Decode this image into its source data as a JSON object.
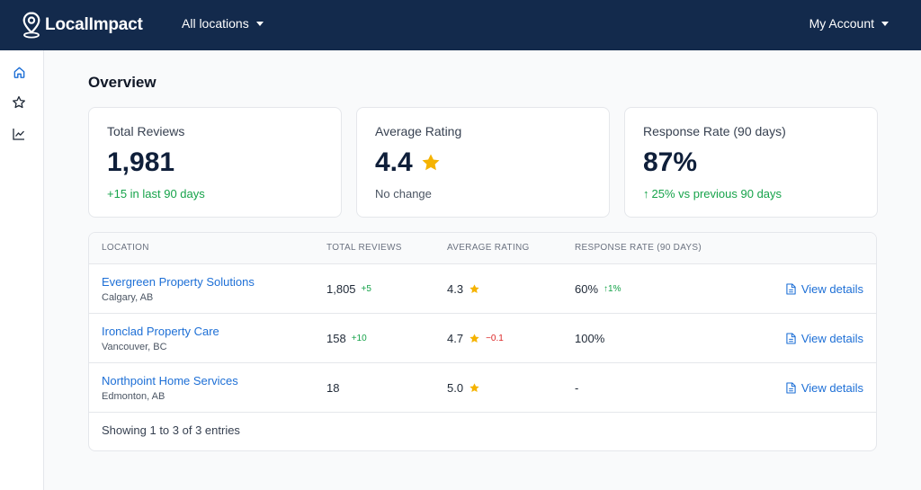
{
  "header": {
    "brand": "LocalImpact",
    "location_selector": "All locations",
    "account_menu": "My Account"
  },
  "sidebar": {
    "items": [
      {
        "icon": "home-icon"
      },
      {
        "icon": "star-icon"
      },
      {
        "icon": "chart-icon"
      }
    ]
  },
  "page": {
    "title": "Overview"
  },
  "stats": {
    "total_reviews": {
      "label": "Total Reviews",
      "value": "1,981",
      "sub": "+15 in last 90 days"
    },
    "average_rating": {
      "label": "Average Rating",
      "value": "4.4",
      "sub": "No change"
    },
    "response_rate": {
      "label": "Response Rate (90 days)",
      "value": "87%",
      "sub_arrow": "↑",
      "sub": "25% vs previous 90 days"
    }
  },
  "table": {
    "headers": [
      "LOCATION",
      "TOTAL REVIEWS",
      "AVERAGE RATING",
      "RESPONSE RATE (90 DAYS)"
    ],
    "rows": [
      {
        "name": "Evergreen Property Solutions",
        "city": "Calgary, AB",
        "reviews": "1,805",
        "reviews_delta": "+5",
        "rating": "4.3",
        "rating_delta": "",
        "response": "60%",
        "response_delta": "↑1%",
        "action": "View details"
      },
      {
        "name": "Ironclad Property Care",
        "city": "Vancouver, BC",
        "reviews": "158",
        "reviews_delta": "+10",
        "rating": "4.7",
        "rating_delta": "−0.1",
        "response": "100%",
        "response_delta": "",
        "action": "View details"
      },
      {
        "name": "Northpoint Home Services",
        "city": "Edmonton, AB",
        "reviews": "18",
        "reviews_delta": "",
        "rating": "5.0",
        "rating_delta": "",
        "response": "-",
        "response_delta": "",
        "action": "View details"
      }
    ],
    "footer": "Showing 1 to 3 of 3 entries"
  },
  "colors": {
    "header_bg": "#132a4c",
    "link": "#1d6fd6",
    "positive": "#16a34a",
    "negative": "#dc2626",
    "star": "#f5b301"
  }
}
